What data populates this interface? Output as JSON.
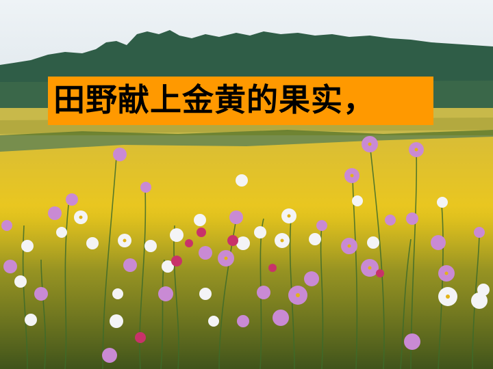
{
  "slide": {
    "caption": "田野献上金黄的果实，"
  },
  "colors": {
    "caption_background": "#ff9900",
    "caption_text": "#000000",
    "sky": "#e9eff3",
    "treeline": "#2f5d47",
    "rapeseed_field": "#e8c21c",
    "cosmos_pink": "#c98ad4",
    "cosmos_white": "#f4f4f6",
    "cosmos_magenta": "#c8326a",
    "foliage": "#3d6b2a"
  }
}
